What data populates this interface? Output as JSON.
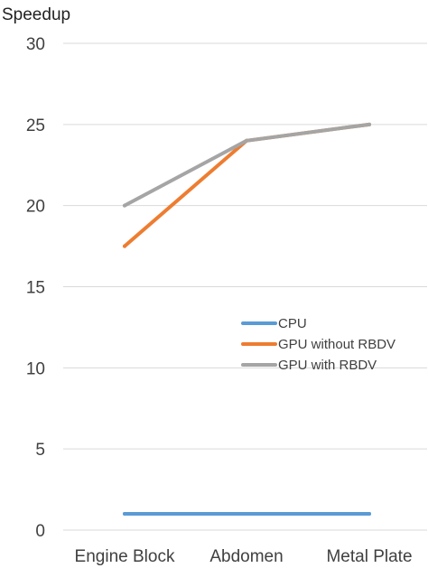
{
  "chart_data": {
    "type": "line",
    "title": "",
    "xlabel": "",
    "ylabel": "Speedup",
    "categories": [
      "Engine Block",
      "Abdomen",
      "Metal Plate"
    ],
    "ylim": [
      0,
      30
    ],
    "yticks": [
      0,
      5,
      10,
      15,
      20,
      25,
      30
    ],
    "grid": true,
    "legend_position": "center-right",
    "series": [
      {
        "name": "CPU",
        "color": "#5b9bd5",
        "values": [
          1,
          1,
          1
        ]
      },
      {
        "name": "GPU without RBDV",
        "color": "#ed7d31",
        "values": [
          17.5,
          24,
          25
        ]
      },
      {
        "name": "GPU with RBDV",
        "color": "#a5a5a5",
        "values": [
          20,
          24,
          25
        ]
      }
    ]
  }
}
